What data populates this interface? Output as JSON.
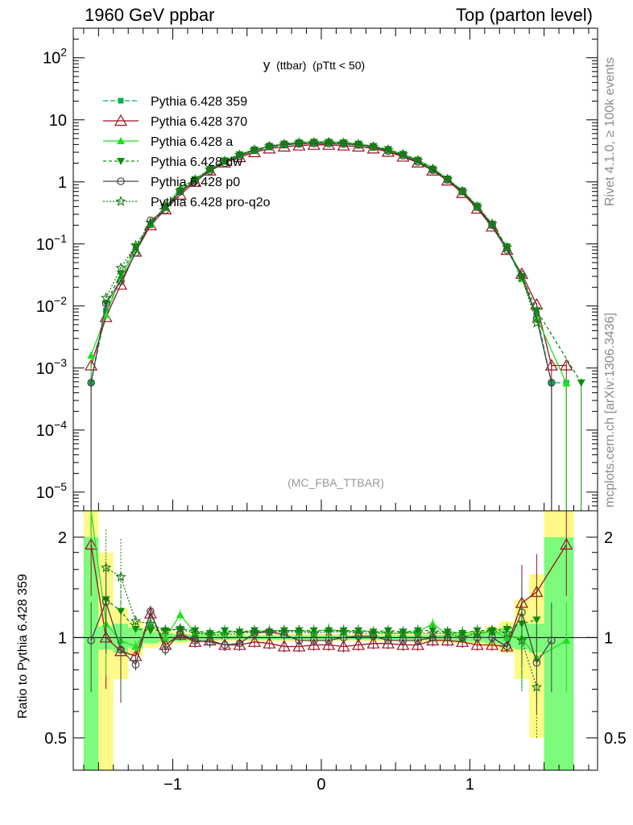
{
  "header": {
    "left": "1960 GeV ppbar",
    "right": "Top (parton level)"
  },
  "side_labels": {
    "rivet": "Rivet 4.1.0, ≥ 100k events",
    "source": "mcplots.cern.ch [arXiv:1306.3436]"
  },
  "colors": {
    "c359": "#00b050",
    "c370": "#9b1022",
    "ca": "#22dd22",
    "cdw": "#0a8f0a",
    "cp0": "#444444",
    "cq2o": "#1a7a1a",
    "band1": "#7dfb7d",
    "band2": "#fffa87"
  },
  "chart_data": [
    {
      "type": "line",
      "title": "y (ttbar) (pTtt < 50)",
      "title_main": "y",
      "title_sub": "(ttbar)",
      "title_cut": "(pTtt < 50)",
      "annotation": "(MC_FBA_TTBAR)",
      "xlim": [
        -1.67,
        1.86
      ],
      "ylim": [
        5e-06,
        300
      ],
      "yscale": "log",
      "ytick_labels": [
        "10^2",
        "10",
        "1",
        "10^-1",
        "10^-2",
        "10^-3",
        "10^-4",
        "10^-5"
      ],
      "x": [
        -1.55,
        -1.45,
        -1.35,
        -1.25,
        -1.15,
        -1.05,
        -0.95,
        -0.85,
        -0.75,
        -0.65,
        -0.55,
        -0.45,
        -0.35,
        -0.25,
        -0.15,
        -0.05,
        0.05,
        0.15,
        0.25,
        0.35,
        0.45,
        0.55,
        0.65,
        0.75,
        0.85,
        0.95,
        1.05,
        1.15,
        1.25,
        1.35,
        1.45,
        1.55,
        1.65,
        1.75
      ],
      "series": [
        {
          "name": "Pythia 6.428 359",
          "style": "c359",
          "marker": "square",
          "dash": "6,3",
          "values": [
            0.00058,
            0.0085,
            0.027,
            0.085,
            0.2,
            0.38,
            0.68,
            1.05,
            1.55,
            2.1,
            2.65,
            3.15,
            3.6,
            3.9,
            4.1,
            4.2,
            4.2,
            4.1,
            3.9,
            3.6,
            3.2,
            2.7,
            2.15,
            1.55,
            1.08,
            0.7,
            0.39,
            0.2,
            0.085,
            0.027,
            0.0075,
            0.00058,
            0.00058,
            null
          ]
        },
        {
          "name": "Pythia 6.428 370",
          "style": "c370",
          "marker": "triangle-open",
          "dash": "",
          "values": [
            0.0011,
            0.0066,
            0.022,
            0.075,
            0.2,
            0.36,
            0.62,
            1.0,
            1.52,
            2.05,
            2.5,
            3.0,
            3.45,
            3.7,
            3.85,
            3.95,
            3.95,
            3.85,
            3.7,
            3.45,
            3.05,
            2.55,
            2.05,
            1.52,
            1.05,
            0.66,
            0.37,
            0.19,
            0.08,
            0.033,
            0.0105,
            0.0011,
            0.0011,
            null
          ]
        },
        {
          "name": "Pythia 6.428 a",
          "style": "ca",
          "marker": "triangle",
          "dash": "",
          "values": [
            0.0016,
            0.0072,
            0.029,
            0.08,
            0.22,
            0.38,
            0.8,
            1.1,
            1.6,
            2.2,
            2.8,
            3.3,
            3.75,
            4.1,
            4.35,
            4.4,
            4.45,
            4.3,
            4.1,
            3.75,
            3.3,
            2.8,
            2.25,
            1.7,
            1.1,
            0.73,
            0.4,
            0.21,
            0.085,
            0.028,
            0.0065,
            null,
            0.00057,
            null
          ]
        },
        {
          "name": "Pythia 6.428 dw",
          "style": "cdw",
          "marker": "triangle-down",
          "dash": "4,3",
          "values": [
            null,
            0.011,
            0.033,
            0.09,
            0.21,
            0.4,
            0.72,
            1.1,
            1.6,
            2.2,
            2.75,
            3.3,
            3.75,
            4.1,
            4.3,
            4.4,
            4.4,
            4.3,
            4.1,
            3.75,
            3.35,
            2.8,
            2.25,
            1.62,
            1.12,
            0.72,
            0.41,
            0.21,
            0.09,
            0.03,
            0.0085,
            null,
            null,
            0.00058
          ]
        },
        {
          "name": "Pythia 6.428 p0",
          "style": "cp0",
          "marker": "circle-open",
          "dash": "",
          "values": [
            0.00058,
            0.011,
            0.025,
            0.072,
            0.24,
            0.35,
            0.7,
            1.03,
            1.5,
            2.0,
            2.6,
            3.25,
            3.75,
            4.0,
            4.1,
            4.15,
            4.15,
            4.1,
            3.95,
            3.65,
            3.15,
            2.65,
            2.1,
            1.55,
            1.08,
            0.7,
            0.39,
            0.2,
            0.08,
            0.032,
            0.0063,
            0.00058,
            null,
            null
          ]
        },
        {
          "name": "Pythia 6.428 pro-q2o",
          "style": "cq2o",
          "marker": "star",
          "dash": "2,2",
          "values": [
            null,
            0.0135,
            0.041,
            0.095,
            0.22,
            0.4,
            0.72,
            1.08,
            1.58,
            2.15,
            2.72,
            3.28,
            3.75,
            4.05,
            4.28,
            4.32,
            4.35,
            4.25,
            4.02,
            3.7,
            3.28,
            2.78,
            2.22,
            1.6,
            1.1,
            0.7,
            0.4,
            0.21,
            0.088,
            0.029,
            0.0053,
            null,
            null,
            null
          ]
        }
      ]
    },
    {
      "type": "line",
      "ylabel": "Ratio to Pythia 6.428 359",
      "xlim": [
        -1.67,
        1.86
      ],
      "ylim": [
        0.4,
        2.4
      ],
      "yscale": "log",
      "ytick_labels": [
        "2",
        "1",
        "0.5"
      ],
      "xtick_labels": [
        "−1",
        "0",
        "1"
      ],
      "bands": {
        "x": [
          -1.55,
          -1.45,
          -1.35,
          -1.25,
          -1.15,
          -1.05,
          -0.95,
          -0.85,
          -0.75,
          -0.65,
          -0.55,
          -0.45,
          -0.35,
          -0.25,
          -0.15,
          -0.05,
          0.05,
          0.15,
          0.25,
          0.35,
          0.45,
          0.55,
          0.65,
          0.75,
          0.85,
          0.95,
          1.05,
          1.15,
          1.25,
          1.35,
          1.45,
          1.55,
          1.65
        ],
        "inner_lo": [
          0.3,
          0.92,
          0.9,
          0.93,
          0.96,
          0.97,
          0.975,
          0.98,
          0.98,
          0.985,
          0.985,
          0.985,
          0.985,
          0.985,
          0.985,
          0.985,
          0.985,
          0.985,
          0.985,
          0.985,
          0.985,
          0.985,
          0.985,
          0.98,
          0.98,
          0.975,
          0.97,
          0.96,
          0.93,
          0.92,
          0.9,
          0.3,
          0.3
        ],
        "inner_hi": [
          2.0,
          1.08,
          1.1,
          1.07,
          1.04,
          1.03,
          1.025,
          1.02,
          1.02,
          1.015,
          1.015,
          1.015,
          1.015,
          1.015,
          1.015,
          1.015,
          1.015,
          1.015,
          1.015,
          1.015,
          1.015,
          1.015,
          1.015,
          1.02,
          1.02,
          1.025,
          1.03,
          1.04,
          1.07,
          1.1,
          1.1,
          2.0,
          2.0
        ],
        "outer_lo": [
          0.3,
          0.37,
          0.75,
          0.88,
          0.93,
          0.95,
          0.96,
          0.97,
          0.97,
          0.975,
          0.975,
          0.975,
          0.975,
          0.975,
          0.975,
          0.975,
          0.975,
          0.975,
          0.975,
          0.975,
          0.975,
          0.975,
          0.97,
          0.97,
          0.965,
          0.96,
          0.95,
          0.93,
          0.9,
          0.75,
          0.5,
          0.3,
          0.3
        ],
        "outer_hi": [
          2.4,
          1.8,
          1.22,
          1.12,
          1.08,
          1.05,
          1.04,
          1.03,
          1.03,
          1.025,
          1.025,
          1.025,
          1.025,
          1.025,
          1.025,
          1.025,
          1.025,
          1.025,
          1.025,
          1.025,
          1.025,
          1.025,
          1.03,
          1.03,
          1.035,
          1.04,
          1.05,
          1.08,
          1.12,
          1.3,
          1.55,
          2.4,
          2.4
        ]
      },
      "x": [
        -1.55,
        -1.45,
        -1.35,
        -1.25,
        -1.15,
        -1.05,
        -0.95,
        -0.85,
        -0.75,
        -0.65,
        -0.55,
        -0.45,
        -0.35,
        -0.25,
        -0.15,
        -0.05,
        0.05,
        0.15,
        0.25,
        0.35,
        0.45,
        0.55,
        0.65,
        0.75,
        0.85,
        0.95,
        1.05,
        1.15,
        1.25,
        1.35,
        1.45,
        1.55,
        1.65
      ],
      "series": [
        {
          "name": "Pythia 6.428 370",
          "style": "c370",
          "marker": "triangle-open",
          "dash": "",
          "values": [
            1.9,
            1.0,
            0.91,
            0.88,
            1.18,
            0.95,
            1.02,
            0.97,
            0.98,
            0.95,
            0.95,
            0.97,
            0.96,
            0.94,
            0.94,
            0.95,
            0.95,
            0.94,
            0.95,
            0.96,
            0.96,
            0.95,
            0.95,
            0.98,
            0.98,
            0.97,
            0.95,
            0.95,
            0.94,
            1.27,
            1.37,
            null,
            1.9
          ]
        },
        {
          "name": "Pythia 6.428 a",
          "style": "ca",
          "marker": "triangle",
          "dash": "",
          "values": [
            2.8,
            1.1,
            0.98,
            0.94,
            1.1,
            1.0,
            1.17,
            1.03,
            1.03,
            1.04,
            1.04,
            1.04,
            1.05,
            1.05,
            1.05,
            1.04,
            1.06,
            1.04,
            1.05,
            1.04,
            1.03,
            1.03,
            1.04,
            1.1,
            1.02,
            1.04,
            1.02,
            1.05,
            1.0,
            1.0,
            0.87,
            null,
            0.98
          ]
        },
        {
          "name": "Pythia 6.428 dw",
          "style": "cdw",
          "marker": "triangle-down",
          "dash": "4,3",
          "values": [
            null,
            1.3,
            1.2,
            1.06,
            1.05,
            1.05,
            1.06,
            1.05,
            1.03,
            1.05,
            1.04,
            1.05,
            1.04,
            1.05,
            1.05,
            1.05,
            1.05,
            1.05,
            1.05,
            1.04,
            1.05,
            1.04,
            1.05,
            1.05,
            1.04,
            1.03,
            1.05,
            1.05,
            1.06,
            1.1,
            1.13,
            null,
            null
          ]
        },
        {
          "name": "Pythia 6.428 p0",
          "style": "cp0",
          "marker": "circle-open",
          "dash": "",
          "values": [
            0.98,
            1.28,
            0.92,
            0.83,
            1.2,
            0.92,
            1.03,
            0.98,
            0.97,
            0.95,
            0.96,
            1.03,
            1.04,
            1.02,
            0.98,
            0.98,
            0.98,
            1.0,
            1.01,
            1.01,
            0.98,
            0.98,
            0.98,
            1.0,
            1.0,
            1.0,
            1.0,
            1.0,
            0.94,
            1.19,
            0.84,
            0.98,
            null
          ]
        },
        {
          "name": "Pythia 6.428 pro-q2o",
          "style": "cq2o",
          "marker": "star",
          "dash": "2,2",
          "values": [
            null,
            1.62,
            1.52,
            1.12,
            1.1,
            1.05,
            1.06,
            1.03,
            1.02,
            1.02,
            1.03,
            1.04,
            1.04,
            1.04,
            1.04,
            1.03,
            1.04,
            1.04,
            1.03,
            1.03,
            1.03,
            1.03,
            1.03,
            1.03,
            1.03,
            1.0,
            1.03,
            1.05,
            1.03,
            0.98,
            0.71,
            null,
            null
          ]
        }
      ]
    }
  ]
}
